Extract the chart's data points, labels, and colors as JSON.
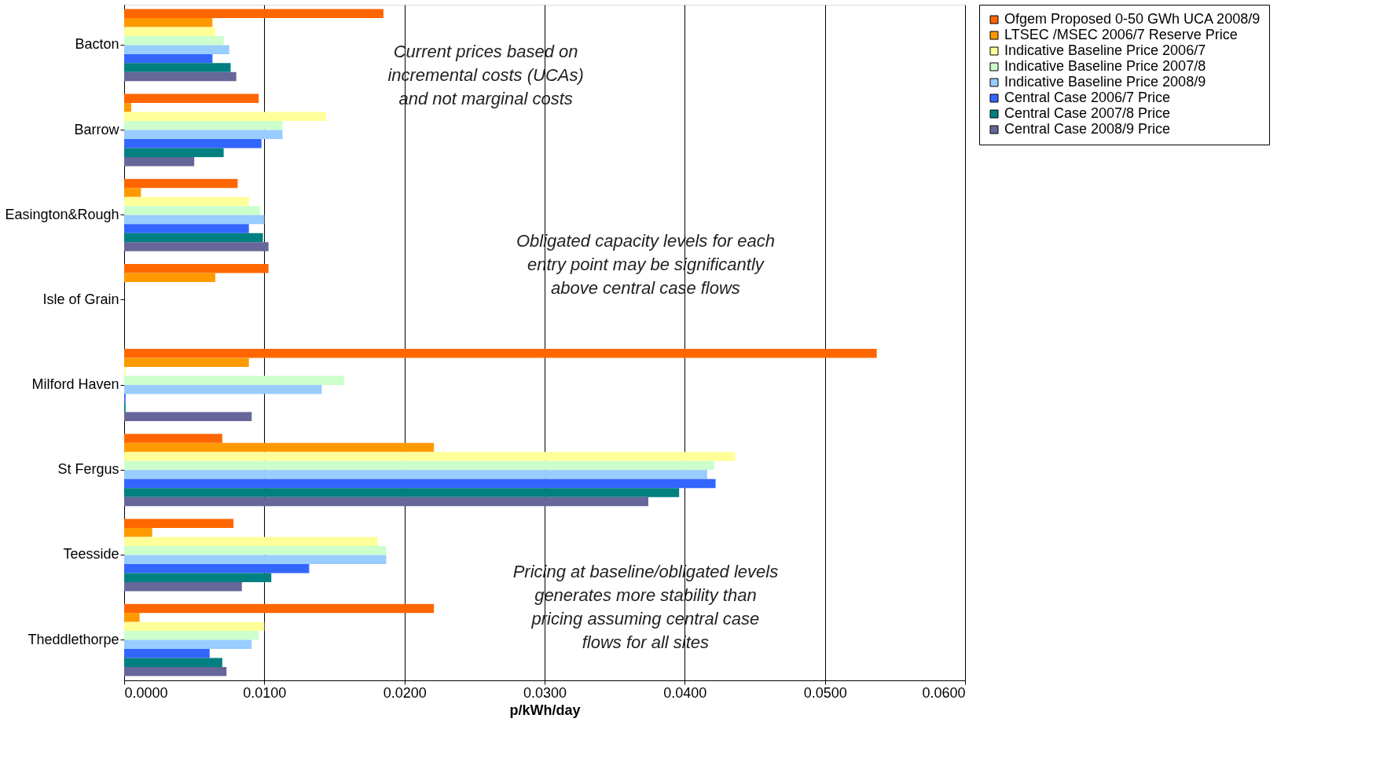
{
  "chart_data": {
    "type": "bar",
    "orientation": "horizontal",
    "xlabel": "p/kWh/day",
    "legend": "right",
    "grid": "x",
    "categories": [
      "Bacton",
      "Barrow",
      "Easington&Rough",
      "Isle of Grain",
      "Milford Haven",
      "St Fergus",
      "Teesside",
      "Theddlethorpe"
    ],
    "series": [
      {
        "name": "Ofgem Proposed 0-50 GWh UCA 2008/9",
        "color": "#ff6600",
        "values": [
          0.0185,
          0.0096,
          0.0081,
          0.0103,
          0.0537,
          0.007,
          0.0078,
          0.0221
        ]
      },
      {
        "name": "LTSEC /MSEC  2006/7 Reserve Price",
        "color": "#ff9900",
        "values": [
          0.0063,
          0.0005,
          0.0012,
          0.0065,
          0.0089,
          0.0221,
          0.002,
          0.0011
        ]
      },
      {
        "name": "Indicative Baseline Price 2006/7",
        "color": "#ffff99",
        "values": [
          0.0065,
          0.0144,
          0.0089,
          0,
          0.0001,
          0.0436,
          0.0181,
          0.01
        ]
      },
      {
        "name": "Indicative Baseline Price 2007/8",
        "color": "#ccffcc",
        "values": [
          0.0071,
          0.0113,
          0.0097,
          0,
          0.0157,
          0.0421,
          0.0187,
          0.0096
        ]
      },
      {
        "name": "Indicative Baseline Price 2008/9",
        "color": "#99ccff",
        "values": [
          0.0075,
          0.0113,
          0.01,
          0,
          0.0141,
          0.0416,
          0.0187,
          0.0091
        ]
      },
      {
        "name": "Central Case 2006/7 Price",
        "color": "#3366ff",
        "values": [
          0.0063,
          0.0098,
          0.0089,
          0,
          0.0001,
          0.0422,
          0.0132,
          0.0061
        ]
      },
      {
        "name": "Central Case 2007/8 Price",
        "color": "#008080",
        "values": [
          0.0076,
          0.0071,
          0.0099,
          0,
          0.0001,
          0.0396,
          0.0105,
          0.007
        ]
      },
      {
        "name": "Central Case 2008/9 Price",
        "color": "#666699",
        "values": [
          0.008,
          0.005,
          0.0103,
          0,
          0.0091,
          0.0374,
          0.0084,
          0.0073
        ]
      }
    ],
    "xlim": [
      0,
      0.06
    ],
    "xticks": [
      {
        "value": 0,
        "label": "0.0000"
      },
      {
        "value": 0.01,
        "label": "0.0100"
      },
      {
        "value": 0.02,
        "label": "0.0200"
      },
      {
        "value": 0.03,
        "label": "0.0300"
      },
      {
        "value": 0.04,
        "label": "0.0400"
      },
      {
        "value": 0.05,
        "label": "0.0500"
      },
      {
        "value": 0.06,
        "label": "0.0600"
      }
    ],
    "annotations": [
      "Current prices based on\nincremental costs (UCAs)\nand not marginal costs",
      "Obligated capacity levels for each\nentry point may be significantly\nabove central case flows",
      "Pricing at baseline/obligated levels\ngenerates more stability than\npricing assuming central case\nflows for all sites"
    ]
  }
}
